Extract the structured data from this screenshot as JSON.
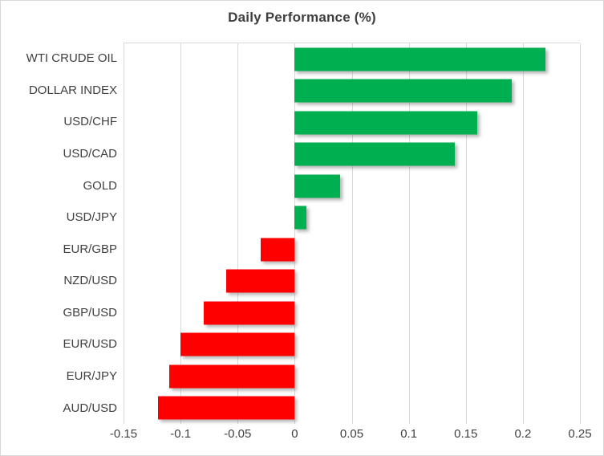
{
  "chart_data": {
    "type": "bar",
    "orientation": "horizontal",
    "title": "Daily Performance (%)",
    "categories": [
      "WTI CRUDE OIL",
      "DOLLAR INDEX",
      "USD/CHF",
      "USD/CAD",
      "GOLD",
      "USD/JPY",
      "EUR/GBP",
      "NZD/USD",
      "GBP/USD",
      "EUR/USD",
      "EUR/JPY",
      "AUD/USD"
    ],
    "values": [
      0.22,
      0.19,
      0.16,
      0.14,
      0.04,
      0.01,
      -0.03,
      -0.06,
      -0.08,
      -0.1,
      -0.11,
      -0.12
    ],
    "xlim": [
      -0.15,
      0.25
    ],
    "tick_step": 0.05,
    "tick_labels": [
      "-0.15",
      "-0.1",
      "-0.05",
      "0",
      "0.05",
      "0.1",
      "0.15",
      "0.2",
      "0.25"
    ],
    "xlabel": "",
    "ylabel": "",
    "grid": true,
    "legend": false,
    "colors": {
      "positive": "#00B050",
      "negative": "#FF0000",
      "gridline": "#d9d9d9",
      "text": "#404040"
    }
  }
}
